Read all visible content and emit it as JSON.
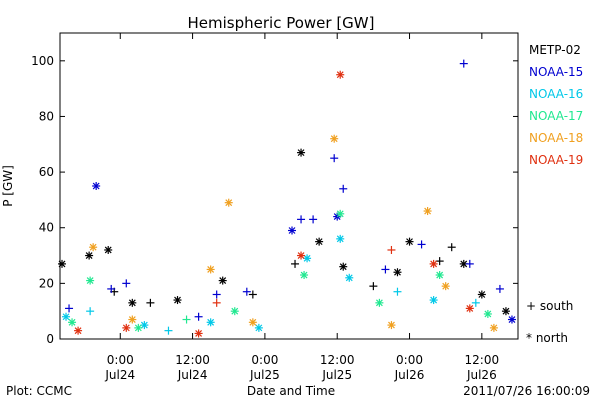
{
  "chart_data": {
    "type": "scatter",
    "title": "Hemispheric Power [GW]",
    "xlabel": "Date and Time",
    "ylabel": "P [GW]",
    "xlim": [
      "2011-07-23 14:00",
      "2011-07-26 18:00"
    ],
    "ylim": [
      0,
      110
    ],
    "y_ticks": [
      0,
      20,
      40,
      60,
      80,
      100
    ],
    "x_ticks": [
      {
        "time": "2011-07-24 00:00",
        "label1": "0:00",
        "label2": "Jul24"
      },
      {
        "time": "2011-07-24 12:00",
        "label1": "12:00",
        "label2": "Jul24"
      },
      {
        "time": "2011-07-25 00:00",
        "label1": "0:00",
        "label2": "Jul25"
      },
      {
        "time": "2011-07-25 12:00",
        "label1": "12:00",
        "label2": "Jul25"
      },
      {
        "time": "2011-07-26 00:00",
        "label1": "0:00",
        "label2": "Jul26"
      },
      {
        "time": "2011-07-26 12:00",
        "label1": "12:00",
        "label2": "Jul26"
      }
    ],
    "legend_title_note": "+ south / * north",
    "marker_legend": [
      {
        "symbol": "+",
        "label": "south"
      },
      {
        "symbol": "*",
        "label": "north"
      }
    ],
    "series": [
      {
        "name": "METP-02",
        "color": "#000000",
        "points": [
          {
            "t": "2011-07-23 14:20",
            "v": 27,
            "m": "north"
          },
          {
            "t": "2011-07-23 18:50",
            "v": 30,
            "m": "north"
          },
          {
            "t": "2011-07-23 22:00",
            "v": 32,
            "m": "north"
          },
          {
            "t": "2011-07-23 23:00",
            "v": 17,
            "m": "south"
          },
          {
            "t": "2011-07-24 02:00",
            "v": 13,
            "m": "north"
          },
          {
            "t": "2011-07-24 05:00",
            "v": 13,
            "m": "south"
          },
          {
            "t": "2011-07-24 09:30",
            "v": 14,
            "m": "north"
          },
          {
            "t": "2011-07-24 17:00",
            "v": 21,
            "m": "north"
          },
          {
            "t": "2011-07-24 22:00",
            "v": 16,
            "m": "south"
          },
          {
            "t": "2011-07-25 06:00",
            "v": 67,
            "m": "north"
          },
          {
            "t": "2011-07-25 05:00",
            "v": 27,
            "m": "south"
          },
          {
            "t": "2011-07-25 09:00",
            "v": 35,
            "m": "north"
          },
          {
            "t": "2011-07-25 13:00",
            "v": 26,
            "m": "north"
          },
          {
            "t": "2011-07-25 18:00",
            "v": 19,
            "m": "south"
          },
          {
            "t": "2011-07-25 22:00",
            "v": 24,
            "m": "north"
          },
          {
            "t": "2011-07-26 00:00",
            "v": 35,
            "m": "north"
          },
          {
            "t": "2011-07-26 05:00",
            "v": 28,
            "m": "south"
          },
          {
            "t": "2011-07-26 07:00",
            "v": 33,
            "m": "south"
          },
          {
            "t": "2011-07-26 09:00",
            "v": 27,
            "m": "north"
          },
          {
            "t": "2011-07-26 12:00",
            "v": 16,
            "m": "north"
          },
          {
            "t": "2011-07-26 16:00",
            "v": 10,
            "m": "north"
          }
        ]
      },
      {
        "name": "NOAA-15",
        "color": "#0000d0",
        "points": [
          {
            "t": "2011-07-23 15:30",
            "v": 11,
            "m": "south"
          },
          {
            "t": "2011-07-23 20:00",
            "v": 55,
            "m": "north"
          },
          {
            "t": "2011-07-23 22:30",
            "v": 18,
            "m": "south"
          },
          {
            "t": "2011-07-24 01:00",
            "v": 20,
            "m": "south"
          },
          {
            "t": "2011-07-24 13:00",
            "v": 8,
            "m": "south"
          },
          {
            "t": "2011-07-24 16:00",
            "v": 16,
            "m": "south"
          },
          {
            "t": "2011-07-24 21:00",
            "v": 17,
            "m": "south"
          },
          {
            "t": "2011-07-25 04:30",
            "v": 39,
            "m": "north"
          },
          {
            "t": "2011-07-25 06:00",
            "v": 43,
            "m": "south"
          },
          {
            "t": "2011-07-25 08:00",
            "v": 43,
            "m": "south"
          },
          {
            "t": "2011-07-25 11:30",
            "v": 65,
            "m": "south"
          },
          {
            "t": "2011-07-25 12:00",
            "v": 44,
            "m": "north"
          },
          {
            "t": "2011-07-25 13:00",
            "v": 54,
            "m": "south"
          },
          {
            "t": "2011-07-25 20:00",
            "v": 25,
            "m": "south"
          },
          {
            "t": "2011-07-26 02:00",
            "v": 34,
            "m": "south"
          },
          {
            "t": "2011-07-26 09:00",
            "v": 99,
            "m": "south"
          },
          {
            "t": "2011-07-26 10:00",
            "v": 27,
            "m": "south"
          },
          {
            "t": "2011-07-26 15:00",
            "v": 18,
            "m": "south"
          },
          {
            "t": "2011-07-26 17:00",
            "v": 7,
            "m": "north"
          }
        ]
      },
      {
        "name": "NOAA-16",
        "color": "#00c8e8",
        "points": [
          {
            "t": "2011-07-23 15:00",
            "v": 8,
            "m": "north"
          },
          {
            "t": "2011-07-23 19:00",
            "v": 10,
            "m": "south"
          },
          {
            "t": "2011-07-24 04:00",
            "v": 5,
            "m": "north"
          },
          {
            "t": "2011-07-24 08:00",
            "v": 3,
            "m": "south"
          },
          {
            "t": "2011-07-24 15:00",
            "v": 6,
            "m": "north"
          },
          {
            "t": "2011-07-24 23:00",
            "v": 4,
            "m": "north"
          },
          {
            "t": "2011-07-25 07:00",
            "v": 29,
            "m": "north"
          },
          {
            "t": "2011-07-25 12:30",
            "v": 36,
            "m": "north"
          },
          {
            "t": "2011-07-25 14:00",
            "v": 22,
            "m": "north"
          },
          {
            "t": "2011-07-25 22:00",
            "v": 17,
            "m": "south"
          },
          {
            "t": "2011-07-26 04:00",
            "v": 14,
            "m": "north"
          },
          {
            "t": "2011-07-26 11:00",
            "v": 13,
            "m": "south"
          }
        ]
      },
      {
        "name": "NOAA-17",
        "color": "#20e890",
        "points": [
          {
            "t": "2011-07-23 16:00",
            "v": 6,
            "m": "north"
          },
          {
            "t": "2011-07-23 19:00",
            "v": 21,
            "m": "north"
          },
          {
            "t": "2011-07-24 03:00",
            "v": 4,
            "m": "north"
          },
          {
            "t": "2011-07-24 11:00",
            "v": 7,
            "m": "south"
          },
          {
            "t": "2011-07-24 19:00",
            "v": 10,
            "m": "north"
          },
          {
            "t": "2011-07-25 06:30",
            "v": 23,
            "m": "north"
          },
          {
            "t": "2011-07-25 12:30",
            "v": 45,
            "m": "north"
          },
          {
            "t": "2011-07-25 19:00",
            "v": 13,
            "m": "north"
          },
          {
            "t": "2011-07-26 05:00",
            "v": 23,
            "m": "north"
          },
          {
            "t": "2011-07-26 13:00",
            "v": 9,
            "m": "north"
          }
        ]
      },
      {
        "name": "NOAA-18",
        "color": "#f0a020",
        "points": [
          {
            "t": "2011-07-23 19:30",
            "v": 33,
            "m": "north"
          },
          {
            "t": "2011-07-24 02:00",
            "v": 7,
            "m": "north"
          },
          {
            "t": "2011-07-24 15:00",
            "v": 25,
            "m": "north"
          },
          {
            "t": "2011-07-24 18:00",
            "v": 49,
            "m": "north"
          },
          {
            "t": "2011-07-24 22:00",
            "v": 6,
            "m": "north"
          },
          {
            "t": "2011-07-25 11:30",
            "v": 72,
            "m": "north"
          },
          {
            "t": "2011-07-25 21:00",
            "v": 5,
            "m": "north"
          },
          {
            "t": "2011-07-26 03:00",
            "v": 46,
            "m": "north"
          },
          {
            "t": "2011-07-26 06:00",
            "v": 19,
            "m": "north"
          },
          {
            "t": "2011-07-26 14:00",
            "v": 4,
            "m": "north"
          }
        ]
      },
      {
        "name": "NOAA-19",
        "color": "#e03010",
        "points": [
          {
            "t": "2011-07-23 17:00",
            "v": 3,
            "m": "north"
          },
          {
            "t": "2011-07-24 01:00",
            "v": 4,
            "m": "north"
          },
          {
            "t": "2011-07-24 13:00",
            "v": 2,
            "m": "north"
          },
          {
            "t": "2011-07-24 16:00",
            "v": 13,
            "m": "south"
          },
          {
            "t": "2011-07-25 06:00",
            "v": 30,
            "m": "north"
          },
          {
            "t": "2011-07-25 12:30",
            "v": 95,
            "m": "north"
          },
          {
            "t": "2011-07-25 21:00",
            "v": 32,
            "m": "south"
          },
          {
            "t": "2011-07-26 04:00",
            "v": 27,
            "m": "north"
          },
          {
            "t": "2011-07-26 10:00",
            "v": 11,
            "m": "north"
          }
        ]
      }
    ]
  },
  "footer": {
    "plot_credit": "Plot: CCMC",
    "timestamp": "2011/07/26 16:00:09"
  }
}
